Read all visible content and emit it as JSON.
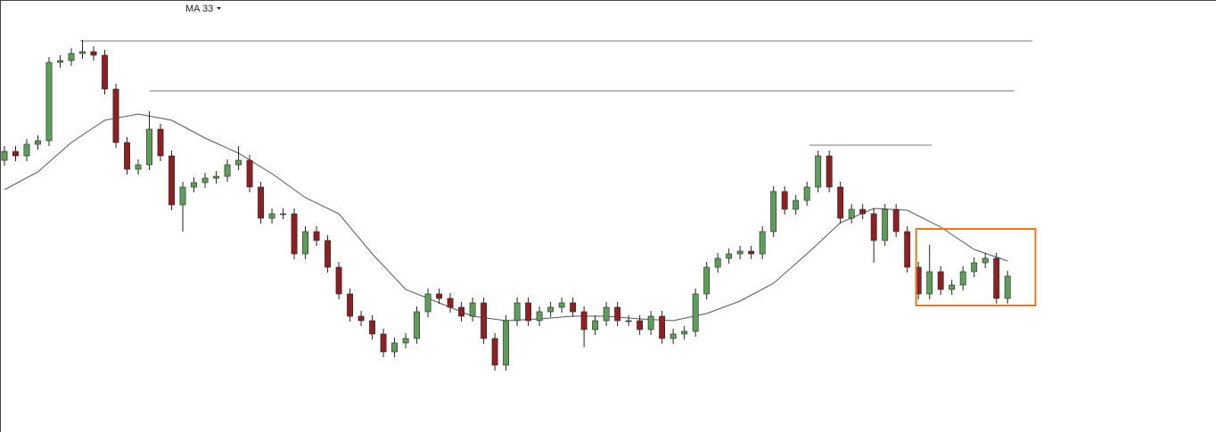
{
  "chart_data": {
    "type": "candlestick",
    "indicator_label": "MA 33",
    "xlim": [
      -0.4,
      108.7
    ],
    "ylim": [
      0,
      480
    ],
    "up_color": "#5e9e5a",
    "down_color": "#8e1f22",
    "open": [
      300,
      310,
      305,
      318,
      322,
      410,
      412,
      420,
      422,
      418,
      380,
      320,
      290,
      295,
      335,
      305,
      250,
      270,
      275,
      280,
      282,
      295,
      300,
      270,
      235,
      240,
      240,
      195,
      220,
      210,
      180,
      150,
      125,
      120,
      105,
      85,
      95,
      100,
      130,
      150,
      145,
      135,
      125,
      140,
      100,
      70,
      120,
      140,
      120,
      130,
      135,
      140,
      130,
      110,
      120,
      135,
      120,
      120,
      110,
      125,
      100,
      105,
      108,
      150,
      180,
      190,
      195,
      198,
      195,
      220,
      265,
      245,
      255,
      270,
      305,
      270,
      235,
      245,
      240,
      210,
      245,
      220,
      180,
      150,
      175,
      155,
      160,
      175,
      185,
      190,
      145
    ],
    "high": [
      316,
      316,
      324,
      328,
      416,
      418,
      426,
      435,
      428,
      424,
      386,
      326,
      301,
      355,
      341,
      311,
      276,
      281,
      286,
      288,
      301,
      316,
      306,
      276,
      246,
      246,
      246,
      226,
      226,
      216,
      186,
      156,
      131,
      126,
      111,
      101,
      106,
      136,
      156,
      156,
      151,
      141,
      146,
      146,
      106,
      126,
      146,
      146,
      136,
      141,
      146,
      146,
      136,
      126,
      141,
      141,
      126,
      126,
      131,
      131,
      111,
      114,
      156,
      186,
      196,
      201,
      204,
      204,
      226,
      271,
      271,
      261,
      276,
      311,
      311,
      276,
      251,
      251,
      246,
      251,
      251,
      226,
      186,
      205,
      181,
      166,
      181,
      191,
      196,
      196,
      176
    ],
    "low": [
      294,
      299,
      299,
      312,
      316,
      404,
      406,
      414,
      412,
      374,
      314,
      284,
      284,
      289,
      299,
      244,
      220,
      264,
      269,
      274,
      276,
      289,
      264,
      229,
      229,
      234,
      189,
      189,
      204,
      174,
      144,
      119,
      114,
      99,
      79,
      79,
      89,
      94,
      124,
      139,
      129,
      119,
      119,
      94,
      64,
      64,
      114,
      114,
      114,
      124,
      129,
      124,
      90,
      104,
      114,
      114,
      114,
      104,
      104,
      94,
      94,
      99,
      102,
      144,
      174,
      184,
      189,
      189,
      189,
      214,
      239,
      239,
      249,
      264,
      264,
      229,
      229,
      234,
      185,
      204,
      214,
      174,
      144,
      144,
      149,
      149,
      154,
      169,
      179,
      139,
      139
    ],
    "close": [
      310,
      305,
      318,
      322,
      410,
      412,
      420,
      422,
      418,
      380,
      320,
      290,
      295,
      335,
      305,
      250,
      270,
      275,
      280,
      282,
      295,
      300,
      270,
      235,
      240,
      240,
      195,
      220,
      210,
      180,
      150,
      125,
      120,
      105,
      85,
      95,
      100,
      130,
      150,
      145,
      135,
      125,
      140,
      100,
      70,
      120,
      140,
      120,
      130,
      135,
      140,
      130,
      110,
      120,
      135,
      120,
      120,
      110,
      125,
      100,
      105,
      108,
      150,
      180,
      190,
      195,
      198,
      195,
      220,
      265,
      245,
      255,
      270,
      305,
      270,
      235,
      245,
      240,
      210,
      245,
      220,
      180,
      150,
      175,
      155,
      160,
      175,
      185,
      190,
      145,
      170
    ],
    "ma": {
      "color": "#555555",
      "x": [
        0,
        3,
        6,
        9,
        12,
        15,
        18,
        21,
        24,
        27,
        30,
        33,
        36,
        39,
        42,
        45,
        48,
        51,
        54,
        57,
        60,
        63,
        66,
        69,
        72,
        75,
        78,
        81,
        84,
        87,
        90
      ],
      "values": [
        267,
        287,
        320,
        345,
        352,
        345,
        325,
        308,
        285,
        258,
        240,
        195,
        155,
        140,
        125,
        120,
        122,
        125,
        125,
        122,
        120,
        128,
        142,
        162,
        195,
        230,
        246,
        244,
        225,
        200,
        187
      ]
    },
    "hlines": [
      {
        "value": 434,
        "x": [
          6.8,
          92.2
        ]
      },
      {
        "value": 378,
        "x": [
          13,
          90.6
        ]
      },
      {
        "value": 317,
        "x": [
          72.2,
          83.2
        ]
      }
    ],
    "hline_color": "#777777",
    "highlight": {
      "x": [
        81.8,
        92.5
      ],
      "y": [
        137,
        223
      ],
      "color": "#e07b24"
    }
  }
}
